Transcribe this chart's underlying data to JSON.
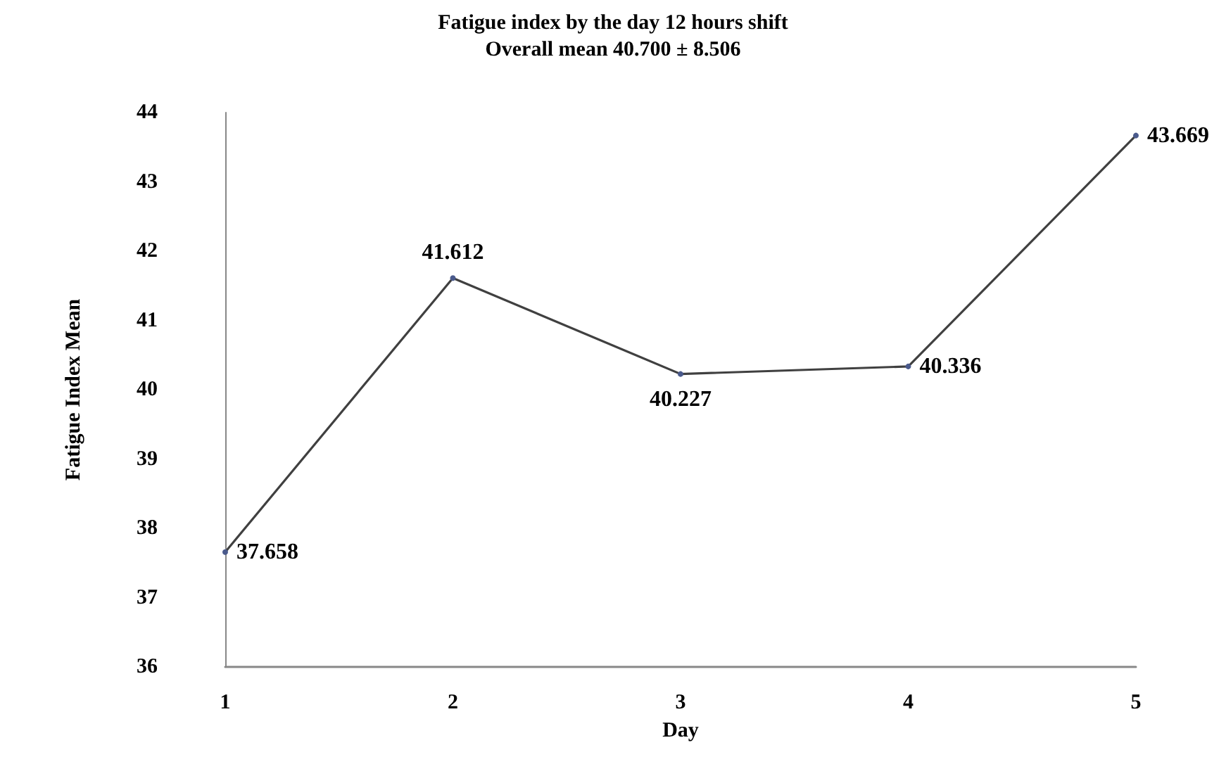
{
  "chart_data": {
    "type": "line",
    "title": "Fatigue index by the day 12 hours shift",
    "subtitle": "Overall mean 40.700 ± 8.506",
    "xlabel": "Day",
    "ylabel": "Fatigue Index Mean",
    "categories": [
      "1",
      "2",
      "3",
      "4",
      "5"
    ],
    "series": [
      {
        "color": "#404040",
        "values": [
          37.658,
          41.612,
          40.227,
          40.336,
          43.669
        ]
      }
    ],
    "ylim": [
      36,
      44
    ],
    "yticks": [
      36,
      37,
      38,
      39,
      40,
      41,
      42,
      43,
      44
    ],
    "grid": false,
    "marker": "circle",
    "line_style": "solid",
    "data_labels": true
  }
}
